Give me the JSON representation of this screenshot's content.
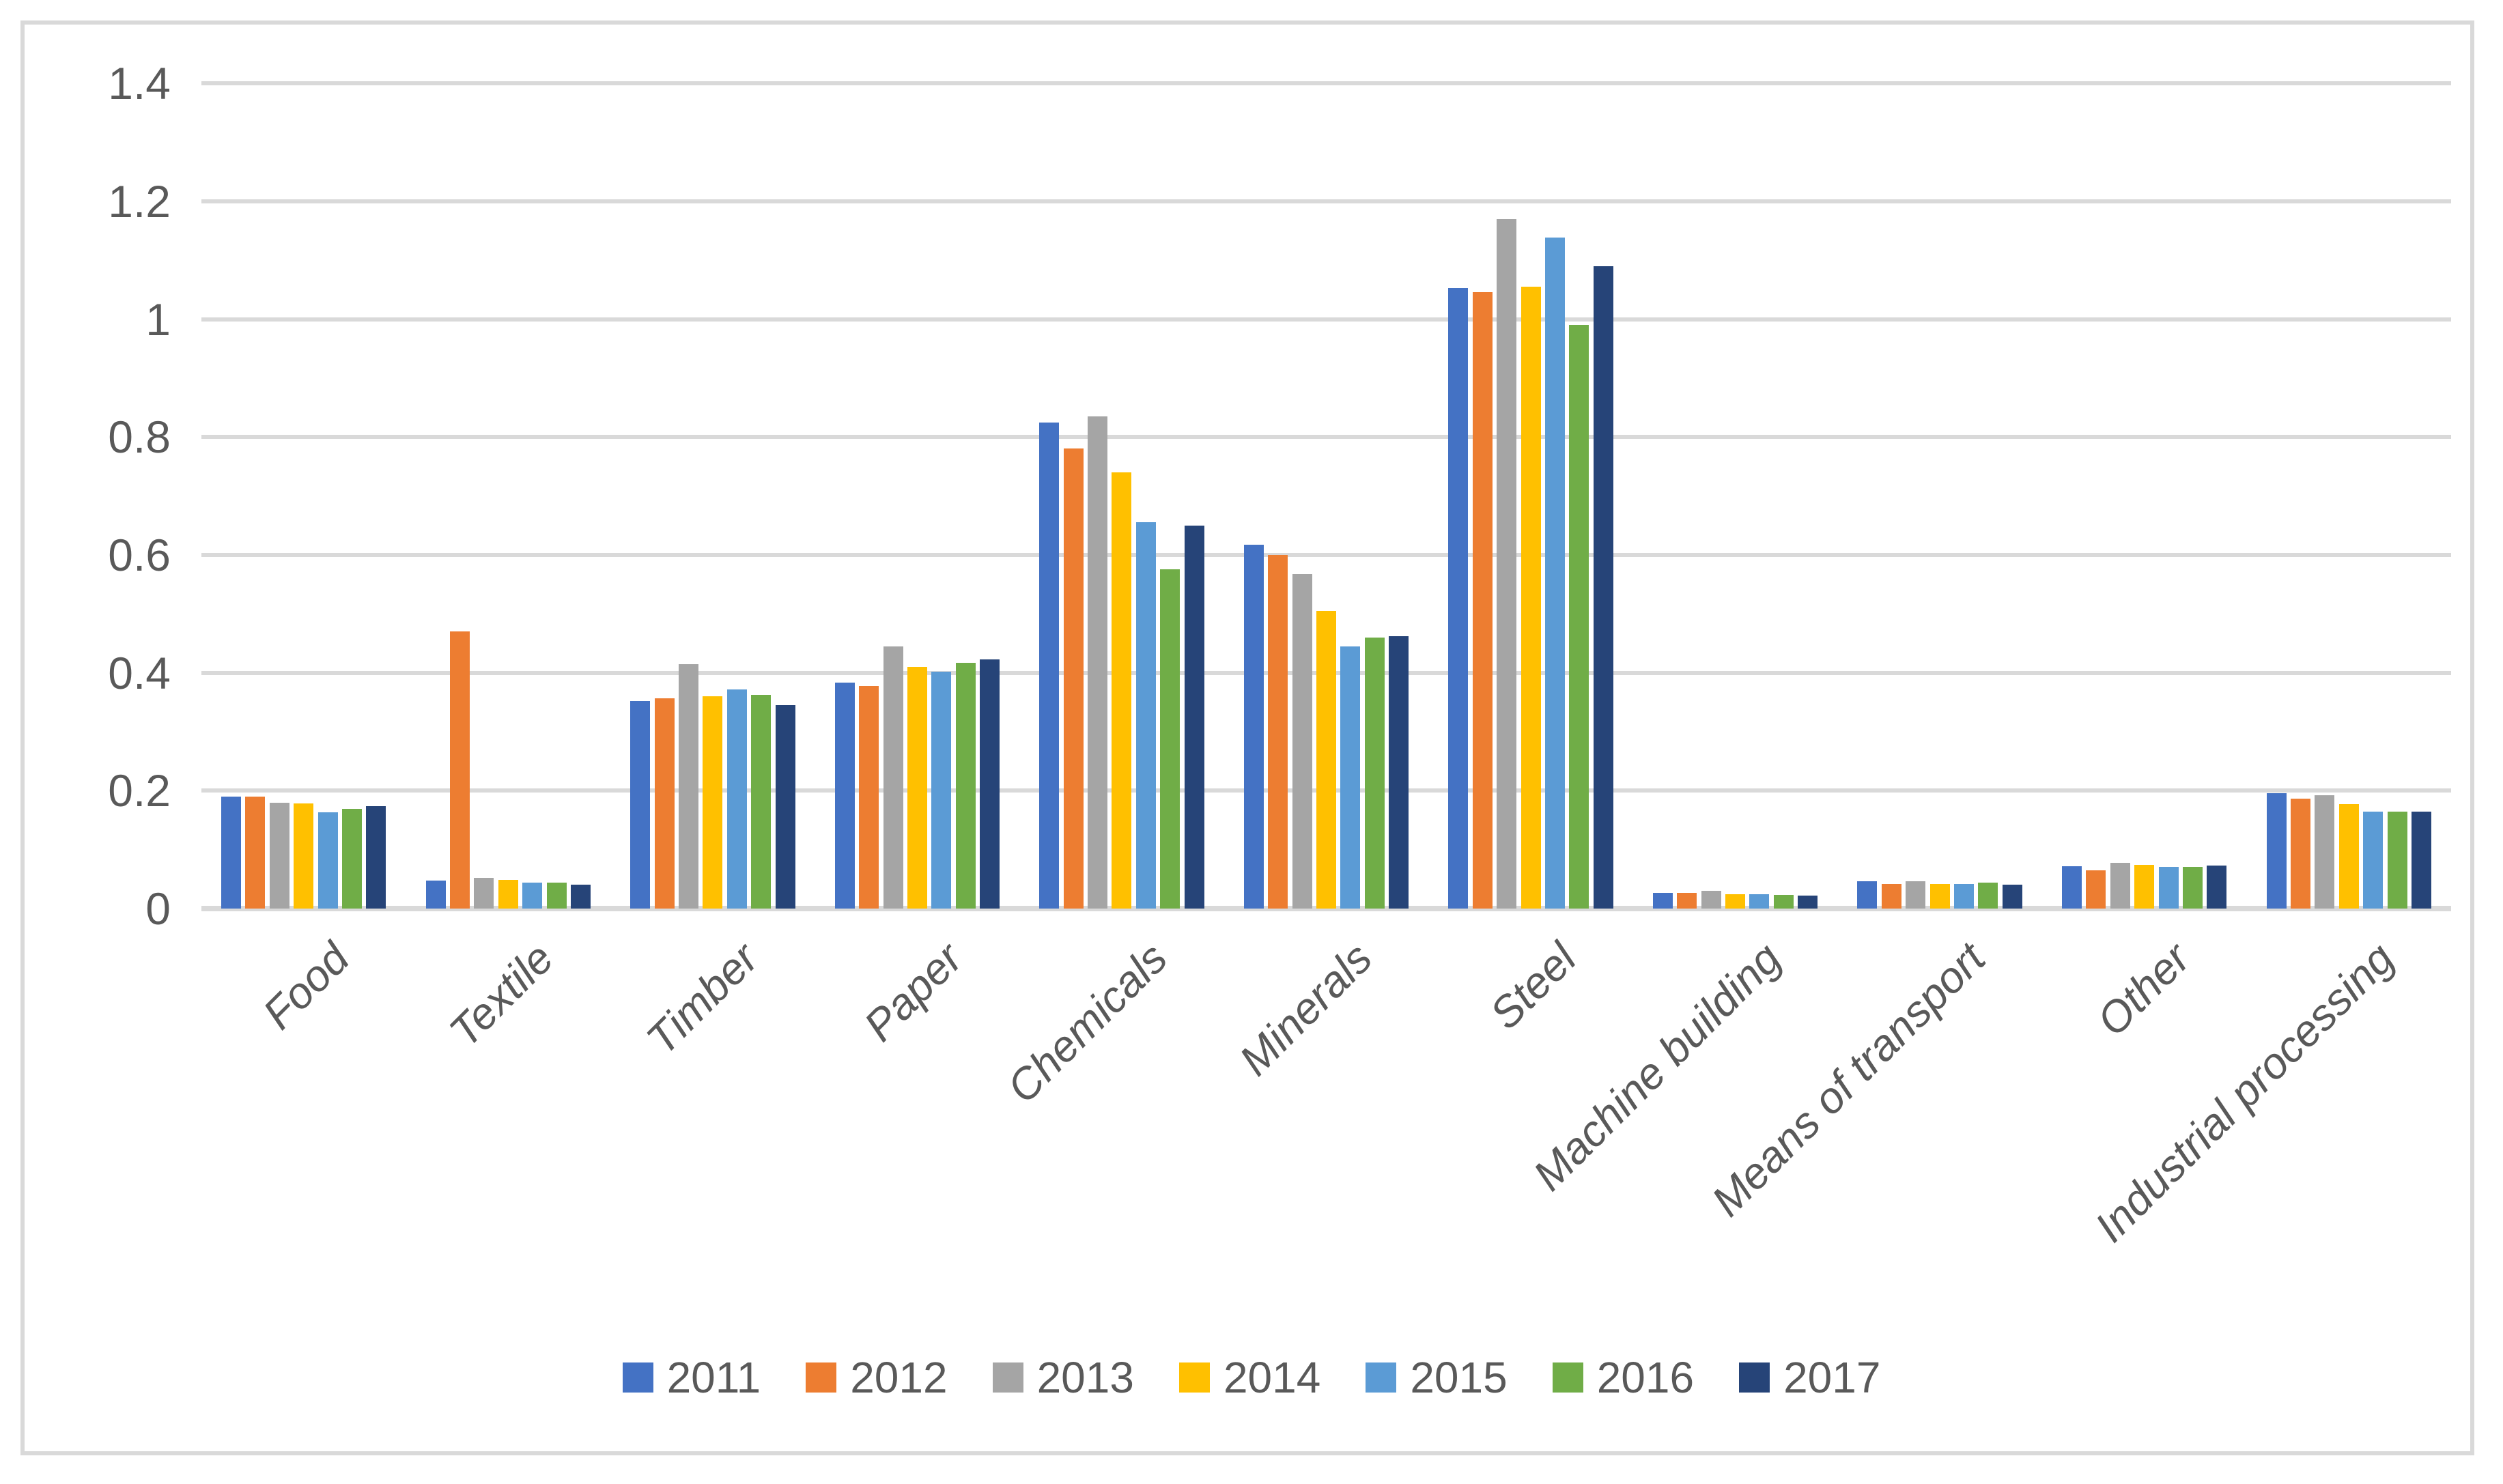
{
  "chart_data": {
    "type": "bar",
    "title": "",
    "xlabel": "",
    "ylabel": "",
    "categories": [
      "Food",
      "Textile",
      "Timber",
      "Paper",
      "Chemicals",
      "Minerals",
      "Steel",
      "Machine building",
      "Means of transport",
      "Other",
      "Industrial processing"
    ],
    "series": [
      {
        "name": "2011",
        "color": "#4472C4",
        "values": [
          0.19,
          0.048,
          0.352,
          0.383,
          0.825,
          0.617,
          1.053,
          0.027,
          0.046,
          0.072,
          0.196
        ]
      },
      {
        "name": "2012",
        "color": "#ED7D31",
        "values": [
          0.19,
          0.47,
          0.357,
          0.377,
          0.78,
          0.6,
          1.046,
          0.027,
          0.042,
          0.065,
          0.186
        ]
      },
      {
        "name": "2013",
        "color": "#A5A5A5",
        "values": [
          0.18,
          0.052,
          0.415,
          0.445,
          0.835,
          0.568,
          1.17,
          0.03,
          0.046,
          0.078,
          0.192
        ]
      },
      {
        "name": "2014",
        "color": "#FFC000",
        "values": [
          0.178,
          0.049,
          0.36,
          0.41,
          0.74,
          0.505,
          1.055,
          0.024,
          0.042,
          0.074,
          0.177
        ]
      },
      {
        "name": "2015",
        "color": "#5B9BD5",
        "values": [
          0.163,
          0.044,
          0.372,
          0.402,
          0.655,
          0.445,
          1.138,
          0.024,
          0.042,
          0.071,
          0.165
        ]
      },
      {
        "name": "2016",
        "color": "#70AD47",
        "values": [
          0.169,
          0.044,
          0.363,
          0.417,
          0.575,
          0.46,
          0.99,
          0.023,
          0.044,
          0.071,
          0.164
        ]
      },
      {
        "name": "2017",
        "color": "#264478",
        "values": [
          0.174,
          0.04,
          0.345,
          0.423,
          0.65,
          0.462,
          1.09,
          0.022,
          0.04,
          0.073,
          0.165
        ]
      }
    ],
    "y_ticks": [
      "0",
      "0.2",
      "0.4",
      "0.6",
      "0.8",
      "1",
      "1.2",
      "1.4"
    ],
    "ylim": [
      0,
      1.4
    ],
    "y_tick_step": 0.2,
    "grid": true,
    "legend_position": "bottom",
    "colors": {
      "grid": "#D9D9D9",
      "axis_line": "#D9D9D9",
      "text": "#595959",
      "chart_border": "#D9D9D9",
      "background": "#FFFFFF"
    }
  }
}
